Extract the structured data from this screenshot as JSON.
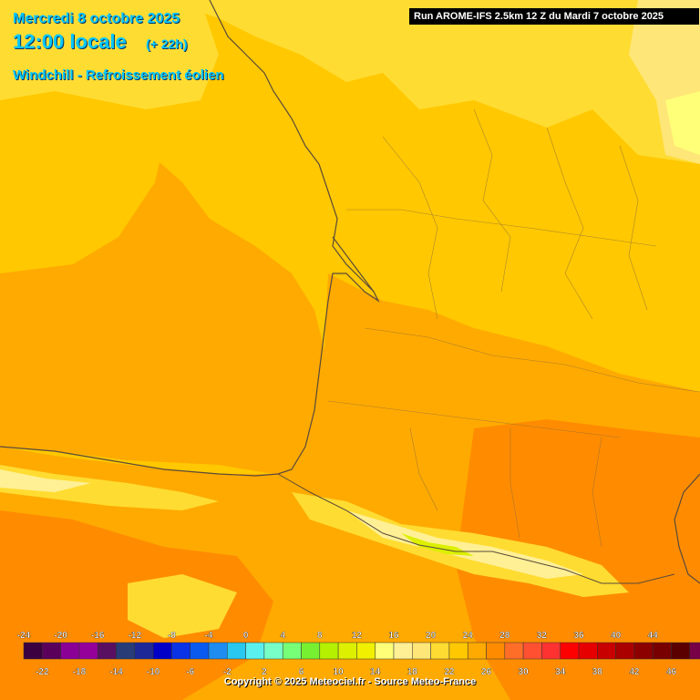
{
  "header": {
    "date": "Mercredi 8 octobre 2025",
    "time": "12:00 locale",
    "lead": "(+ 22h)",
    "parameter": "Windchill - Refroissement éolien",
    "run": "Run AROME-IFS 2.5km 12 Z du Mardi 7 octobre 2025"
  },
  "legend": {
    "top_labels": [
      "-24",
      "-20",
      "-16",
      "-12",
      "-8",
      "-4",
      "0",
      "4",
      "8",
      "12",
      "16",
      "20",
      "24",
      "28",
      "32",
      "36",
      "40",
      "44"
    ],
    "bottom_labels": [
      "-22",
      "-18",
      "-14",
      "-10",
      "-6",
      "-2",
      "2",
      "6",
      "10",
      "14",
      "18",
      "22",
      "26",
      "30",
      "34",
      "38",
      "42",
      "46"
    ],
    "colors": [
      "#3c0040",
      "#5a005a",
      "#8a0096",
      "#96009a",
      "#5a1060",
      "#283c78",
      "#1e2896",
      "#0000c8",
      "#0a32e6",
      "#0a5af0",
      "#1e8cf0",
      "#28c8f0",
      "#5af0f0",
      "#78ffc8",
      "#78ff78",
      "#78f032",
      "#b4f000",
      "#dcf000",
      "#f0f000",
      "#ffff78",
      "#fff096",
      "#ffe678",
      "#ffdc32",
      "#ffc800",
      "#ffaa00",
      "#ff8c00",
      "#ff6e28",
      "#ff5032",
      "#ff3232",
      "#ff0000",
      "#e60000",
      "#c80000",
      "#aa0000",
      "#8c0000",
      "#780000",
      "#5a0000",
      "#780046",
      "#96005a",
      "#c800b4",
      "#e600e6",
      "#ff28ff",
      "#ff78ff"
    ]
  },
  "copyright": "Copyright © 2025 Meteociel.fr - Source Meteo-France"
}
